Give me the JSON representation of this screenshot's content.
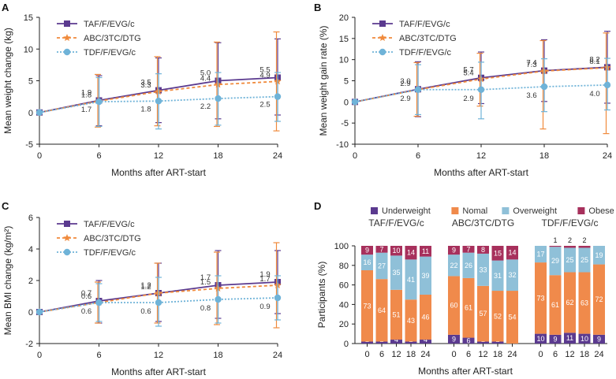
{
  "chart_data": [
    {
      "panel": "A",
      "type": "line",
      "ylabel": "Mean weight change (kg)",
      "xlabel": "Months after ART-start",
      "x": [
        0,
        6,
        12,
        18,
        24
      ],
      "xticks": [
        "0",
        "6",
        "12",
        "18",
        "24"
      ],
      "ylim": [
        -5,
        15
      ],
      "yticks": [
        -5,
        0,
        5,
        10,
        15
      ],
      "legend": "top-left",
      "series": [
        {
          "name": "TAF/F/EVG/c",
          "color": "#5b3a8f",
          "dash": "",
          "marker": "square",
          "values": [
            0,
            1.9,
            3.5,
            5.0,
            5.5
          ],
          "err_hi": [
            0,
            5.8,
            8.6,
            11.0,
            11.6
          ],
          "err_lo": [
            0,
            -2.1,
            -1.6,
            -1.0,
            -0.4
          ],
          "labels": [
            null,
            "1.9",
            "3.5",
            "5.0",
            "5.5"
          ]
        },
        {
          "name": "ABC/3TC/DTG",
          "color": "#f08a3c",
          "dash": "4,3",
          "marker": "star",
          "values": [
            0,
            1.8,
            3.3,
            4.4,
            4.9
          ],
          "err_hi": [
            0,
            6.0,
            8.8,
            11.1,
            12.7
          ],
          "err_lo": [
            0,
            -2.3,
            -2.1,
            -2.2,
            -2.9
          ],
          "labels": [
            null,
            "1.8",
            "3.3",
            "4.4",
            "4.9"
          ]
        },
        {
          "name": "TDF/F/EVG/c",
          "color": "#6fb3d8",
          "dash": "2,2",
          "marker": "circle",
          "values": [
            0,
            1.7,
            1.8,
            2.2,
            2.5
          ],
          "err_hi": [
            0,
            5.5,
            6.1,
            6.3,
            6.3
          ],
          "err_lo": [
            0,
            -2.2,
            -2.6,
            -2.0,
            -1.4
          ],
          "labels": [
            null,
            "1.7",
            "1.8",
            "2.2",
            "2.5"
          ]
        }
      ]
    },
    {
      "panel": "B",
      "type": "line",
      "ylabel": "Mean weight gain rate (%)",
      "xlabel": "Months after ART-start",
      "x": [
        0,
        6,
        12,
        18,
        24
      ],
      "xticks": [
        "0",
        "6",
        "12",
        "18",
        "24"
      ],
      "ylim": [
        -10,
        20
      ],
      "yticks": [
        -10,
        -5,
        0,
        5,
        10,
        15,
        20
      ],
      "legend": "top-left",
      "series": [
        {
          "name": "TAF/F/EVG/c",
          "color": "#5b3a8f",
          "dash": "",
          "marker": "square",
          "values": [
            0,
            3.0,
            5.7,
            7.4,
            8.2
          ],
          "err_hi": [
            0,
            9.5,
            11.8,
            14.7,
            16.7
          ],
          "err_lo": [
            0,
            -3.5,
            -0.4,
            0.1,
            -0.3
          ],
          "labels": [
            null,
            "3.0",
            "5.7",
            "7.4",
            "8.2"
          ]
        },
        {
          "name": "ABC/3TC/DTG",
          "color": "#f08a3c",
          "dash": "4,3",
          "marker": "star",
          "values": [
            0,
            2.9,
            5.4,
            7.3,
            8.1
          ],
          "err_hi": [
            0,
            9.3,
            11.5,
            14.5,
            16.3
          ],
          "err_lo": [
            0,
            -3.4,
            -1.0,
            -6.4,
            -7.5
          ],
          "labels": [
            null,
            "2.9",
            "5.4",
            "7.3",
            "8.1"
          ]
        },
        {
          "name": "TDF/F/EVG/c",
          "color": "#6fb3d8",
          "dash": "2,2",
          "marker": "circle",
          "values": [
            0,
            2.9,
            2.9,
            3.6,
            4.0
          ],
          "err_hi": [
            0,
            8.8,
            9.4,
            10.2,
            10.3
          ],
          "err_lo": [
            0,
            -3.0,
            -4.0,
            -2.3,
            -1.9
          ],
          "labels": [
            null,
            "2.9",
            "2.9",
            "3.6",
            "4.0"
          ]
        }
      ]
    },
    {
      "panel": "C",
      "type": "line",
      "ylabel": "Mean BMI change (kg/m²)",
      "xlabel": "Months after ART-start",
      "x": [
        0,
        6,
        12,
        18,
        24
      ],
      "xticks": [
        "0",
        "6",
        "12",
        "18",
        "24"
      ],
      "ylim": [
        -2,
        6
      ],
      "yticks": [
        -2,
        0,
        2,
        4,
        6
      ],
      "legend": "top-left",
      "series": [
        {
          "name": "TAF/F/EVG/c",
          "color": "#5b3a8f",
          "dash": "",
          "marker": "square",
          "values": [
            0,
            0.7,
            1.2,
            1.7,
            1.9
          ],
          "err_hi": [
            0,
            2.0,
            3.1,
            3.9,
            3.9
          ],
          "err_lo": [
            0,
            -0.7,
            -0.6,
            -0.4,
            -0.1
          ],
          "labels": [
            null,
            "0.7",
            "1.2",
            "1.7",
            "1.9"
          ]
        },
        {
          "name": "ABC/3TC/DTG",
          "color": "#f08a3c",
          "dash": "4,3",
          "marker": "star",
          "values": [
            0,
            0.6,
            1.2,
            1.5,
            1.7
          ],
          "err_hi": [
            0,
            1.9,
            3.1,
            3.8,
            4.4
          ],
          "err_lo": [
            0,
            -0.7,
            -0.7,
            -0.8,
            -1.0
          ],
          "labels": [
            null,
            "0.6",
            "1.2",
            "1.5",
            "1.7"
          ]
        },
        {
          "name": "TDF/F/EVG/c",
          "color": "#6fb3d8",
          "dash": "2,2",
          "marker": "circle",
          "values": [
            0,
            0.6,
            0.6,
            0.8,
            0.9
          ],
          "err_hi": [
            0,
            1.8,
            2.2,
            2.3,
            2.3
          ],
          "err_lo": [
            0,
            -0.6,
            -0.9,
            -0.7,
            -0.5
          ],
          "labels": [
            null,
            "0.6",
            "0.6",
            "0.8",
            "0.9"
          ]
        }
      ]
    },
    {
      "panel": "D",
      "type": "bar",
      "stacked": true,
      "ylabel": "Participants (%)",
      "xlabel": "Months after ART-start",
      "ylim": [
        0,
        100
      ],
      "yticks": [
        0,
        20,
        40,
        60,
        80,
        100
      ],
      "legend": "top",
      "categories_legend": [
        {
          "name": "Underweight",
          "color": "#5b3a8f"
        },
        {
          "name": "Nomal",
          "color": "#f08a4b"
        },
        {
          "name": "Overweight",
          "color": "#8fc0d8"
        },
        {
          "name": "Obese",
          "color": "#a7305c"
        }
      ],
      "groups": [
        {
          "name": "TAF/F/EVG/c",
          "months": [
            "0",
            "6",
            "12",
            "18",
            "24"
          ],
          "bars": [
            [
              2,
              73,
              16,
              9
            ],
            [
              2,
              64,
              27,
              7
            ],
            [
              4,
              51,
              35,
              10
            ],
            [
              2,
              43,
              41,
              14
            ],
            [
              4,
              46,
              39,
              11
            ]
          ]
        },
        {
          "name": "ABC/3TC/DTG",
          "months": [
            "0",
            "6",
            "12",
            "18",
            "24"
          ],
          "bars": [
            [
              9,
              60,
              22,
              9
            ],
            [
              6,
              61,
              26,
              7
            ],
            [
              2,
              57,
              33,
              8
            ],
            [
              2,
              52,
              31,
              15
            ],
            [
              0,
              54,
              32,
              14
            ]
          ]
        },
        {
          "name": "TDF/F/EVG/c",
          "months": [
            "0",
            "6",
            "12",
            "18",
            "24"
          ],
          "bars": [
            [
              10,
              73,
              17,
              0
            ],
            [
              9,
              61,
              29,
              1
            ],
            [
              11,
              62,
              25,
              2
            ],
            [
              10,
              63,
              25,
              2
            ],
            [
              9,
              72,
              19,
              0
            ]
          ]
        }
      ]
    }
  ]
}
